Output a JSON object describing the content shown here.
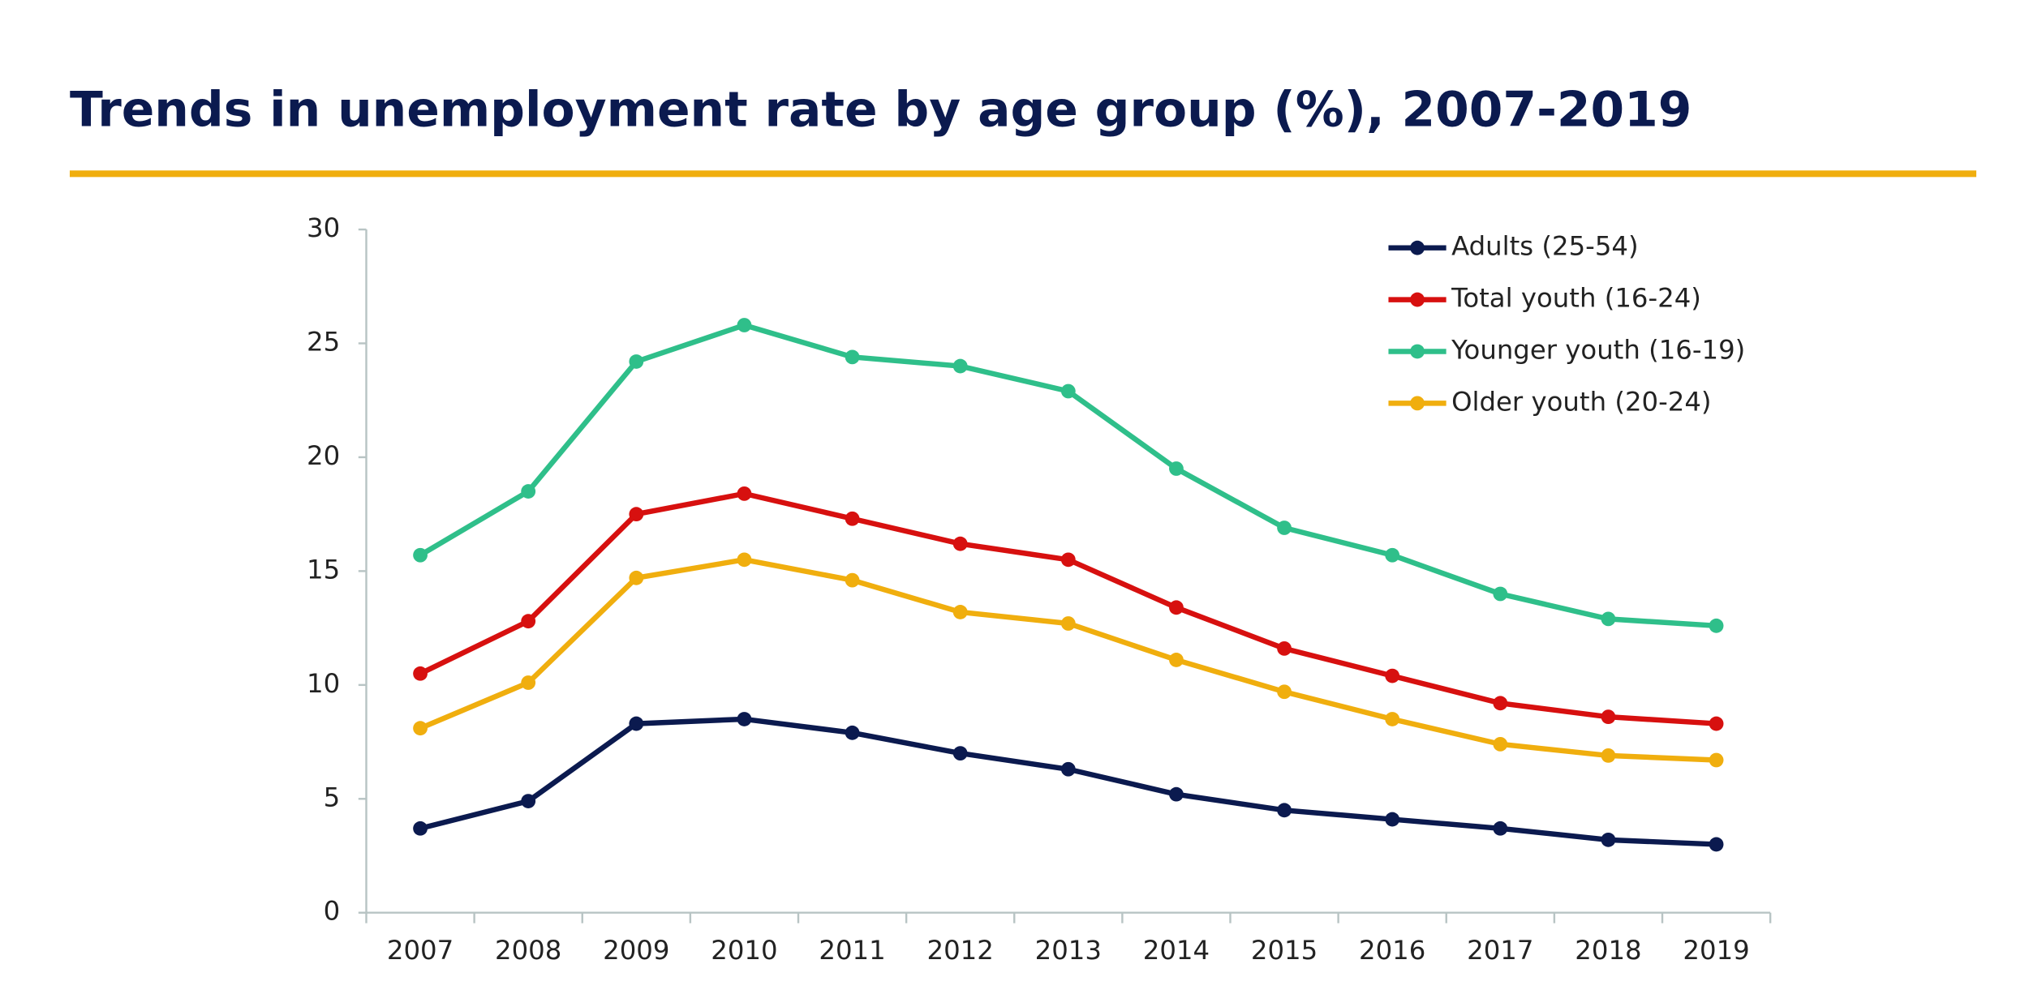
{
  "chart_data": {
    "type": "line",
    "title": "Trends in unemployment rate by age group (%), 2007-2019",
    "categories": [
      "2007",
      "2008",
      "2009",
      "2010",
      "2011",
      "2012",
      "2013",
      "2014",
      "2015",
      "2016",
      "2017",
      "2018",
      "2019"
    ],
    "series": [
      {
        "name": "Adults (25-54)",
        "color": "#0b1a4f",
        "values": [
          3.7,
          4.9,
          8.3,
          8.5,
          7.9,
          7.0,
          6.3,
          5.2,
          4.5,
          4.1,
          3.7,
          3.2,
          3.0
        ]
      },
      {
        "name": "Total youth (16-24)",
        "color": "#d7100f",
        "values": [
          10.5,
          12.8,
          17.5,
          18.4,
          17.3,
          16.2,
          15.5,
          13.4,
          11.6,
          10.4,
          9.2,
          8.6,
          8.3
        ]
      },
      {
        "name": "Younger youth (16-19)",
        "color": "#2fbf8a",
        "values": [
          15.7,
          18.5,
          24.2,
          25.8,
          24.4,
          24.0,
          22.9,
          19.5,
          16.9,
          15.7,
          14.0,
          12.9,
          12.6
        ]
      },
      {
        "name": "Older youth (20-24)",
        "color": "#f0ae0e",
        "values": [
          8.1,
          10.1,
          14.7,
          15.5,
          14.6,
          13.2,
          12.7,
          11.1,
          9.7,
          8.5,
          7.4,
          6.9,
          6.7
        ]
      }
    ],
    "ylim": [
      0,
      30
    ],
    "yticks": [
      0,
      5,
      10,
      15,
      20,
      25,
      30
    ],
    "grid": false,
    "legend": "top-right"
  }
}
